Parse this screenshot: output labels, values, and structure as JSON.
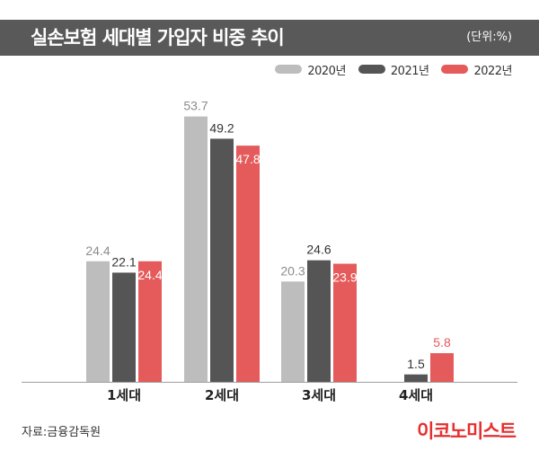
{
  "header": {
    "title": "실손보험 세대별 가입자 비중 추이",
    "unit": "(단위:%)"
  },
  "footer": {
    "source": "자료:금융감독원",
    "logo": "이코노미스트"
  },
  "chart_data": {
    "type": "bar",
    "categories": [
      "1세대",
      "2세대",
      "3세대",
      "4세대"
    ],
    "series": [
      {
        "name": "2020년",
        "color": "#bdbdbd",
        "label_color": "#8c8c8c",
        "values": [
          24.4,
          53.7,
          20.3,
          null
        ]
      },
      {
        "name": "2021년",
        "color": "#555555",
        "label_color": "#333333",
        "values": [
          22.1,
          49.2,
          24.6,
          1.5
        ]
      },
      {
        "name": "2022년",
        "color": "#e55a5a",
        "label_color": "#e55a5a",
        "values": [
          24.4,
          47.8,
          23.9,
          5.8
        ]
      }
    ],
    "title": "실손보험 세대별 가입자 비중 추이",
    "unit": "%",
    "ylim": [
      0,
      60
    ],
    "grid": false,
    "legend_position": "top-right"
  }
}
